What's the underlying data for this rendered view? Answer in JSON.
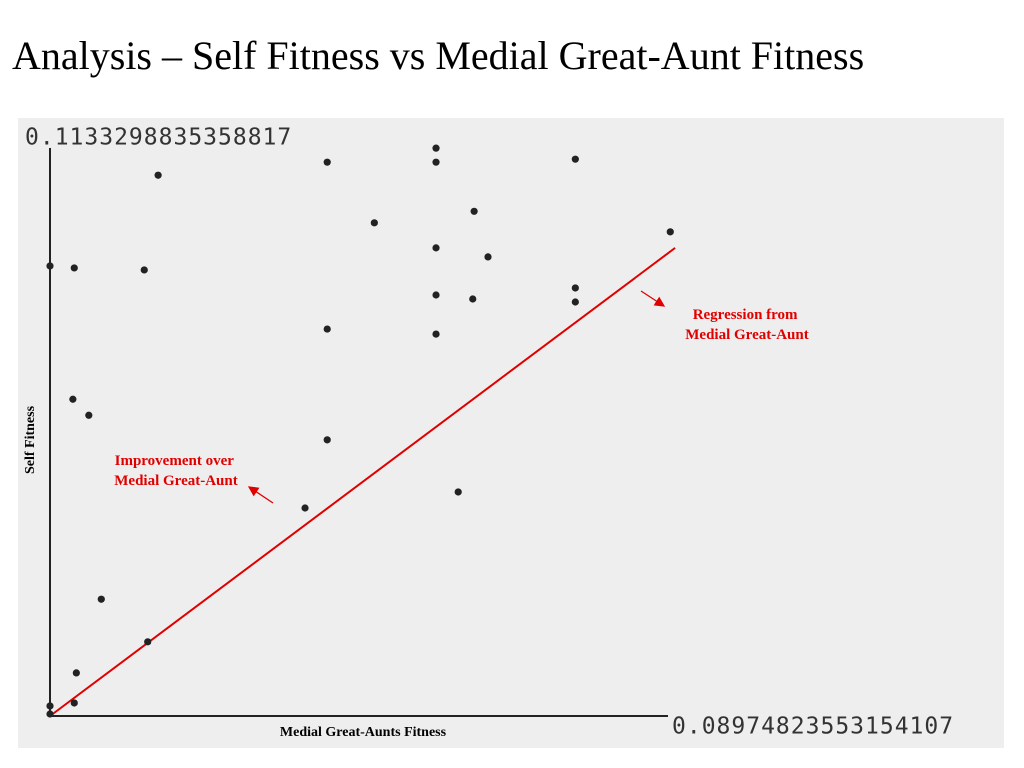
{
  "chart_data": {
    "type": "scatter",
    "title": "Analysis – Self Fitness vs Medial Great-Aunt Fitness",
    "x_label": "Medial Great-Aunts Fitness",
    "y_label": "Self Fitness",
    "xlim": [
      0,
      0.08974823553154107
    ],
    "ylim": [
      0,
      0.1133298835358817
    ],
    "xticks": [
      0.08974823553154107
    ],
    "yticks": [
      0.1133298835358817
    ],
    "color": "#222222",
    "x": [
      0,
      0,
      0.0035,
      0.0038,
      0.0074,
      0.0141,
      0.0033,
      0.0056,
      0,
      0.0035,
      0.0136,
      0.0156,
      0.04,
      0.04,
      0.04,
      0.0368,
      0.0468,
      0.0557,
      0.0557,
      0.0557,
      0.0557,
      0.0557,
      0.0612,
      0.061,
      0.0632,
      0.0589,
      0.0758,
      0.0758,
      0.0758,
      0.0895
    ],
    "y": [
      0.002,
      0.0004,
      0.0026,
      0.0086,
      0.0233,
      0.0148,
      0.0632,
      0.06,
      0.0898,
      0.0894,
      0.089,
      0.1079,
      0.1105,
      0.0772,
      0.0551,
      0.0415,
      0.0984,
      0.1133,
      0.1105,
      0.0934,
      0.084,
      0.0762,
      0.1007,
      0.0832,
      0.0916,
      0.0447,
      0.1111,
      0.0854,
      0.0826,
      0.0966
    ],
    "regression_line": {
      "color": "#e00000",
      "x": [
        0,
        0.0902
      ],
      "y": [
        0,
        0.0934
      ]
    },
    "annotations": [
      {
        "lines": [
          "Regression from",
          "Medial Great-Aunt"
        ],
        "color": "#e00000"
      },
      {
        "lines": [
          "Improvement over",
          "Medial Great-Aunt"
        ],
        "color": "#e00000"
      }
    ]
  }
}
